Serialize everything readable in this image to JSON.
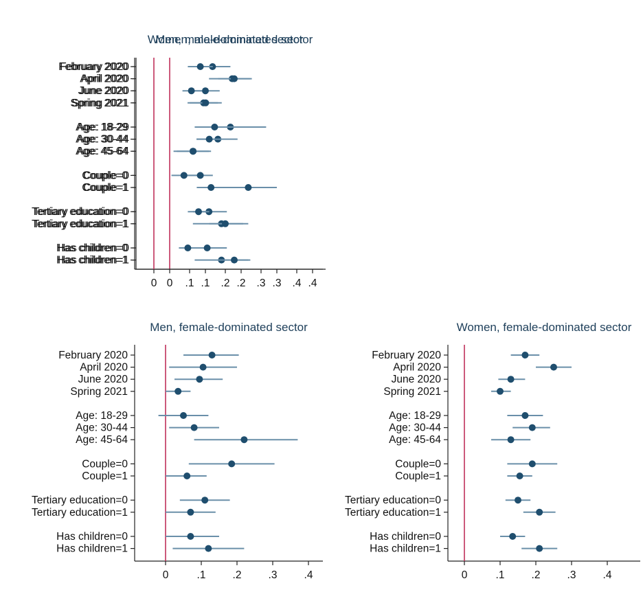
{
  "chart_data": [
    {
      "type": "coefficient-plot",
      "title": "Men, male-dominated sector",
      "xticks": [
        "0",
        ".1",
        ".2",
        ".3",
        ".4"
      ],
      "xlim": [
        -0.06,
        0.41
      ],
      "reference_line": 0,
      "groups": [
        {
          "items": [
            {
              "label": "February 2020",
              "estimate": 0.12,
              "ci": [
                0.07,
                0.17
              ]
            },
            {
              "label": "April 2020",
              "estimate": 0.175,
              "ci": [
                0.11,
                0.23
              ]
            },
            {
              "label": "June 2020",
              "estimate": 0.1,
              "ci": [
                0.06,
                0.14
              ]
            },
            {
              "label": "Spring 2021",
              "estimate": 0.095,
              "ci": [
                0.05,
                0.135
              ]
            }
          ]
        },
        {
          "items": [
            {
              "label": "Age: 18-29",
              "estimate": 0.17,
              "ci": [
                0.07,
                0.27
              ]
            },
            {
              "label": "Age: 30-44",
              "estimate": 0.135,
              "ci": [
                0.075,
                0.19
              ]
            },
            {
              "label": "Age: 45-64",
              "estimate": 0.065,
              "ci": [
                0.02,
                0.11
              ]
            }
          ]
        },
        {
          "items": [
            {
              "label": "Couple=0",
              "estimate": 0.04,
              "ci": [
                0.005,
                0.08
              ]
            },
            {
              "label": "Couple=1",
              "estimate": 0.22,
              "ci": [
                0.14,
                0.3
              ]
            }
          ]
        },
        {
          "items": [
            {
              "label": "Tertiary education=0",
              "estimate": 0.11,
              "ci": [
                0.065,
                0.16
              ]
            },
            {
              "label": "Tertiary education=1",
              "estimate": 0.145,
              "ci": [
                0.065,
                0.22
              ]
            }
          ]
        },
        {
          "items": [
            {
              "label": "Has children=0",
              "estimate": 0.105,
              "ci": [
                0.05,
                0.16
              ]
            },
            {
              "label": "Has children=1",
              "estimate": 0.145,
              "ci": [
                0.07,
                0.22
              ]
            }
          ]
        }
      ]
    },
    {
      "type": "coefficient-plot",
      "title": "Women, male-dominated sector",
      "xticks": [
        "0",
        ".1",
        ".2",
        ".3",
        ".4"
      ],
      "xlim": [
        -0.06,
        0.41
      ],
      "reference_line": 0,
      "groups": [
        {
          "items": [
            {
              "label": "February 2020",
              "estimate": 0.13,
              "ci": [
                0.095,
                0.165
              ]
            },
            {
              "label": "April 2020",
              "estimate": 0.225,
              "ci": [
                0.18,
                0.27
              ]
            },
            {
              "label": "June 2020",
              "estimate": 0.105,
              "ci": [
                0.08,
                0.135
              ]
            },
            {
              "label": "Spring 2021",
              "estimate": 0.145,
              "ci": [
                0.1,
                0.19
              ]
            }
          ]
        },
        {
          "items": [
            {
              "label": "Age: 18-29",
              "estimate": 0.17,
              "ci": [
                0.115,
                0.225
              ]
            },
            {
              "label": "Age: 30-44",
              "estimate": 0.155,
              "ci": [
                0.12,
                0.19
              ]
            },
            {
              "label": "Age: 45-64",
              "estimate": 0.11,
              "ci": [
                0.055,
                0.16
              ]
            }
          ]
        },
        {
          "items": [
            {
              "label": "Couple=0",
              "estimate": 0.13,
              "ci": [
                0.095,
                0.165
              ]
            },
            {
              "label": "Couple=1",
              "estimate": 0.16,
              "ci": [
                0.12,
                0.195
              ]
            }
          ]
        },
        {
          "items": [
            {
              "label": "Tertiary education=0",
              "estimate": 0.125,
              "ci": [
                0.095,
                0.155
              ]
            },
            {
              "label": "Tertiary education=1",
              "estimate": 0.2,
              "ci": [
                0.155,
                0.25
              ]
            }
          ]
        },
        {
          "items": [
            {
              "label": "Has children=0",
              "estimate": 0.095,
              "ci": [
                0.07,
                0.125
              ]
            },
            {
              "label": "Has children=1",
              "estimate": 0.225,
              "ci": [
                0.18,
                0.27
              ]
            }
          ]
        }
      ]
    },
    {
      "type": "coefficient-plot",
      "title": "Men, female-dominated sector",
      "xticks": [
        "0",
        ".1",
        ".2",
        ".3",
        ".4"
      ],
      "xlim": [
        -0.06,
        0.41
      ],
      "reference_line": 0,
      "groups": [
        {
          "items": [
            {
              "label": "February 2020",
              "estimate": 0.13,
              "ci": [
                0.05,
                0.205
              ]
            },
            {
              "label": "April 2020",
              "estimate": 0.105,
              "ci": [
                0.01,
                0.2
              ]
            },
            {
              "label": "June 2020",
              "estimate": 0.095,
              "ci": [
                0.025,
                0.16
              ]
            },
            {
              "label": "Spring 2021",
              "estimate": 0.035,
              "ci": [
                0.0,
                0.07
              ]
            }
          ]
        },
        {
          "items": [
            {
              "label": "Age: 18-29",
              "estimate": 0.05,
              "ci": [
                -0.02,
                0.12
              ]
            },
            {
              "label": "Age: 30-44",
              "estimate": 0.08,
              "ci": [
                0.01,
                0.15
              ]
            },
            {
              "label": "Age: 45-64",
              "estimate": 0.22,
              "ci": [
                0.08,
                0.37
              ]
            }
          ]
        },
        {
          "items": [
            {
              "label": "Couple=0",
              "estimate": 0.185,
              "ci": [
                0.065,
                0.305
              ]
            },
            {
              "label": "Couple=1",
              "estimate": 0.06,
              "ci": [
                0.0,
                0.115
              ]
            }
          ]
        },
        {
          "items": [
            {
              "label": "Tertiary education=0",
              "estimate": 0.11,
              "ci": [
                0.04,
                0.18
              ]
            },
            {
              "label": "Tertiary education=1",
              "estimate": 0.07,
              "ci": [
                0.0,
                0.14
              ]
            }
          ]
        },
        {
          "items": [
            {
              "label": "Has children=0",
              "estimate": 0.07,
              "ci": [
                0.0,
                0.15
              ]
            },
            {
              "label": "Has children=1",
              "estimate": 0.12,
              "ci": [
                0.02,
                0.22
              ]
            }
          ]
        }
      ]
    },
    {
      "type": "coefficient-plot",
      "title": "Women, female-dominated sector",
      "xticks": [
        "0",
        ".1",
        ".2",
        ".3",
        ".4"
      ],
      "xlim": [
        -0.06,
        0.41
      ],
      "reference_line": 0,
      "groups": [
        {
          "items": [
            {
              "label": "February 2020",
              "estimate": 0.17,
              "ci": [
                0.13,
                0.21
              ]
            },
            {
              "label": "April 2020",
              "estimate": 0.25,
              "ci": [
                0.2,
                0.3
              ]
            },
            {
              "label": "June 2020",
              "estimate": 0.13,
              "ci": [
                0.095,
                0.17
              ]
            },
            {
              "label": "Spring 2021",
              "estimate": 0.1,
              "ci": [
                0.075,
                0.13
              ]
            }
          ]
        },
        {
          "items": [
            {
              "label": "Age: 18-29",
              "estimate": 0.17,
              "ci": [
                0.12,
                0.22
              ]
            },
            {
              "label": "Age: 30-44",
              "estimate": 0.19,
              "ci": [
                0.135,
                0.24
              ]
            },
            {
              "label": "Age: 45-64",
              "estimate": 0.13,
              "ci": [
                0.075,
                0.185
              ]
            }
          ]
        },
        {
          "items": [
            {
              "label": "Couple=0",
              "estimate": 0.19,
              "ci": [
                0.12,
                0.26
              ]
            },
            {
              "label": "Couple=1",
              "estimate": 0.155,
              "ci": [
                0.12,
                0.19
              ]
            }
          ]
        },
        {
          "items": [
            {
              "label": "Tertiary education=0",
              "estimate": 0.15,
              "ci": [
                0.115,
                0.185
              ]
            },
            {
              "label": "Tertiary education=1",
              "estimate": 0.21,
              "ci": [
                0.165,
                0.255
              ]
            }
          ]
        },
        {
          "items": [
            {
              "label": "Has children=0",
              "estimate": 0.135,
              "ci": [
                0.1,
                0.17
              ]
            },
            {
              "label": "Has children=1",
              "estimate": 0.21,
              "ci": [
                0.16,
                0.26
              ]
            }
          ]
        }
      ]
    }
  ],
  "colors": {
    "marker": "#1f4e6e",
    "ci_line": "#6a8fa9",
    "reference_line": "#c0305a",
    "title": "#1e3f5a",
    "axis": "#222222"
  }
}
